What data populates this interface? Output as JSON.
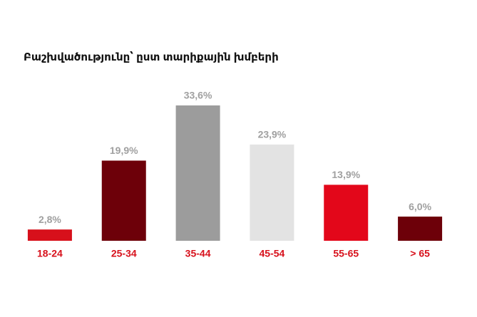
{
  "chart_data": {
    "type": "bar",
    "title": "Բաշխվածությունը՝ ըստ տարիքային խմբերի",
    "categories": [
      "18-24",
      "25-34",
      "35-44",
      "45-54",
      "55-65",
      "> 65"
    ],
    "values": [
      2.8,
      19.9,
      33.6,
      23.9,
      13.9,
      6.0
    ],
    "value_labels": [
      "2,8%",
      "19,9%",
      "33,6%",
      "23,9%",
      "13,9%",
      "6,0%"
    ],
    "colors": [
      "#d7101b",
      "#6d0009",
      "#9c9c9c",
      "#e3e3e3",
      "#e3071a",
      "#6d0009"
    ]
  }
}
